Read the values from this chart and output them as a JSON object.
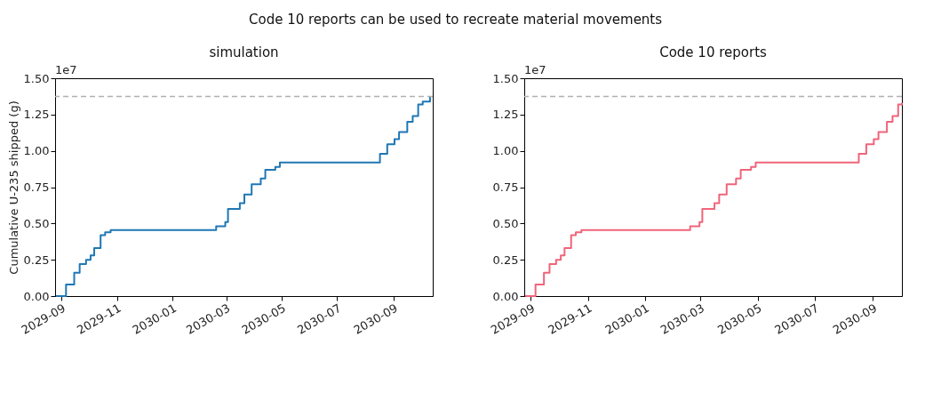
{
  "chart_data": [
    {
      "type": "step",
      "title": "simulation",
      "ylabel": "Cumulative U-235 shipped (g)",
      "annotations": [
        "Code 10 reports can be used to recreate material movements",
        "1e7"
      ],
      "x": [
        "2029-08-26",
        "2029-09-06",
        "2029-09-15",
        "2029-09-21",
        "2029-09-28",
        "2029-10-03",
        "2029-10-07",
        "2029-10-14",
        "2029-10-19",
        "2029-10-25",
        "2030-02-18",
        "2030-02-28",
        "2030-03-03",
        "2030-03-16",
        "2030-03-21",
        "2030-03-29",
        "2030-04-08",
        "2030-04-13",
        "2030-04-24",
        "2030-04-29",
        "2030-08-11",
        "2030-08-17",
        "2030-08-25",
        "2030-09-02",
        "2030-09-07",
        "2030-09-16",
        "2030-09-22",
        "2030-09-28",
        "2030-10-03",
        "2030-10-11"
      ],
      "series": [
        {
          "color": "#1f77b4",
          "values": [
            0,
            0.08,
            0.16,
            0.22,
            0.25,
            0.28,
            0.33,
            0.42,
            0.44,
            0.455,
            0.48,
            0.51,
            0.6,
            0.64,
            0.7,
            0.77,
            0.81,
            0.87,
            0.89,
            0.92,
            0.92,
            0.98,
            1.045,
            1.08,
            1.13,
            1.2,
            1.24,
            1.32,
            1.34,
            1.375
          ]
        }
      ],
      "xlim": [
        "2029-08-25",
        "2030-10-14"
      ],
      "xticks": [
        {
          "value": "2029-09",
          "label": "2029-09"
        },
        {
          "value": "2029-11",
          "label": "2029-11"
        },
        {
          "value": "2030-01",
          "label": "2030-01"
        },
        {
          "value": "2030-03",
          "label": "2030-03"
        },
        {
          "value": "2030-05",
          "label": "2030-05"
        },
        {
          "value": "2030-07",
          "label": "2030-07"
        },
        {
          "value": "2030-09",
          "label": "2030-09"
        }
      ],
      "ylim": [
        0,
        1.5
      ],
      "yticks": [
        {
          "value": 0,
          "label": "0.00"
        },
        0.25,
        {
          "value": 0.5,
          "label": "0.50"
        },
        0.75,
        {
          "value": 1,
          "label": "1.00"
        },
        1.25,
        {
          "value": 1.5,
          "label": "1.50"
        }
      ],
      "ref_lines": [
        {
          "axis": "y",
          "value": 1.375,
          "color": "#b0b0b0",
          "line_style": "dashed"
        }
      ],
      "grid": false
    },
    {
      "type": "step",
      "title": "Code 10 reports",
      "annotations": [
        "1e7"
      ],
      "x": [
        "2029-08-26",
        "2029-09-06",
        "2029-09-15",
        "2029-09-21",
        "2029-09-28",
        "2029-10-03",
        "2029-10-07",
        "2029-10-14",
        "2029-10-19",
        "2029-10-25",
        "2030-02-18",
        "2030-02-28",
        "2030-03-03",
        "2030-03-16",
        "2030-03-21",
        "2030-03-29",
        "2030-04-08",
        "2030-04-13",
        "2030-04-24",
        "2030-04-29",
        "2030-08-11",
        "2030-08-17",
        "2030-08-25",
        "2030-09-02",
        "2030-09-07",
        "2030-09-16",
        "2030-09-22",
        "2030-09-28",
        "2030-10-02"
      ],
      "series": [
        {
          "color": "#f0647a",
          "values": [
            0,
            0.08,
            0.16,
            0.22,
            0.25,
            0.28,
            0.33,
            0.42,
            0.44,
            0.455,
            0.48,
            0.51,
            0.6,
            0.64,
            0.7,
            0.77,
            0.81,
            0.87,
            0.89,
            0.92,
            0.92,
            0.98,
            1.045,
            1.08,
            1.13,
            1.2,
            1.24,
            1.32,
            1.33
          ]
        }
      ],
      "xlim": [
        "2029-08-25",
        "2030-10-02"
      ],
      "xticks": [
        {
          "value": "2029-09",
          "label": "2029-09"
        },
        {
          "value": "2029-11",
          "label": "2029-11"
        },
        {
          "value": "2030-01",
          "label": "2030-01"
        },
        {
          "value": "2030-03",
          "label": "2030-03"
        },
        {
          "value": "2030-05",
          "label": "2030-05"
        },
        {
          "value": "2030-07",
          "label": "2030-07"
        },
        {
          "value": "2030-09",
          "label": "2030-09"
        }
      ],
      "ylim": [
        0,
        1.5
      ],
      "yticks": [
        {
          "value": 0,
          "label": "0.00"
        },
        0.25,
        {
          "value": 0.5,
          "label": "0.50"
        },
        0.75,
        {
          "value": 1,
          "label": "1.00"
        },
        1.25,
        {
          "value": 1.5,
          "label": "1.50"
        }
      ],
      "ref_lines": [
        {
          "axis": "y",
          "value": 1.375,
          "color": "#b0b0b0",
          "line_style": "dashed"
        }
      ],
      "grid": false
    }
  ]
}
